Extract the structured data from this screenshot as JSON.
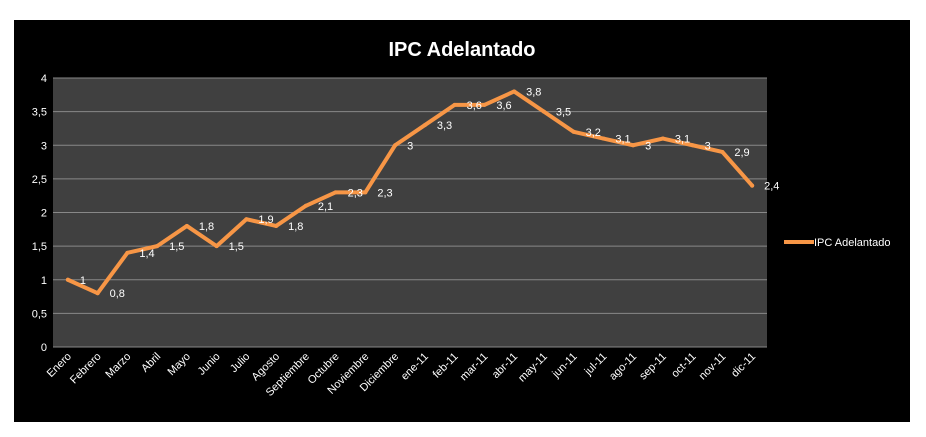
{
  "chart_data": {
    "type": "line",
    "title": "IPC Adelantado",
    "xlabel": "",
    "ylabel": "",
    "categories": [
      "Enero",
      "Febrero",
      "Marzo",
      "Abril",
      "Mayo",
      "Junio",
      "Julio",
      "Agosto",
      "Septiembre",
      "Octubre",
      "Noviembre",
      "Diciembre",
      "ene-11",
      "feb-11",
      "mar-11",
      "abr-11",
      "may-11",
      "jun-11",
      "jul-11",
      "ago-11",
      "sep-11",
      "oct-11",
      "nov-11",
      "dic-11"
    ],
    "series": [
      {
        "name": "IPC Adelantado",
        "color": "#F79646",
        "values": [
          1,
          0.8,
          1.4,
          1.5,
          1.8,
          1.5,
          1.9,
          1.8,
          2.1,
          2.3,
          2.3,
          3,
          3.3,
          3.6,
          3.6,
          3.8,
          3.5,
          3.2,
          3.1,
          3,
          3.1,
          3,
          2.9,
          2.4
        ],
        "labels": [
          "1",
          "0,8",
          "1,4",
          "1,5",
          "1,8",
          "1,5",
          "1,9",
          "1,8",
          "2,1",
          "2,3",
          "2,3",
          "3",
          "3,3",
          "3,6",
          "3,6",
          "3,8",
          "3,5",
          "3,2",
          "3,1",
          "3",
          "3,1",
          "3",
          "2,9",
          "2,4"
        ]
      }
    ],
    "ylim": [
      0,
      4
    ],
    "yticks": [
      "0",
      "0,5",
      "1",
      "1,5",
      "2",
      "2,5",
      "3",
      "3,5",
      "4"
    ],
    "grid": true,
    "legend_position": "right",
    "colors": {
      "background": "#000000",
      "plot_area": "#404040",
      "gridline": "#888888",
      "text": "#ffffff"
    }
  }
}
